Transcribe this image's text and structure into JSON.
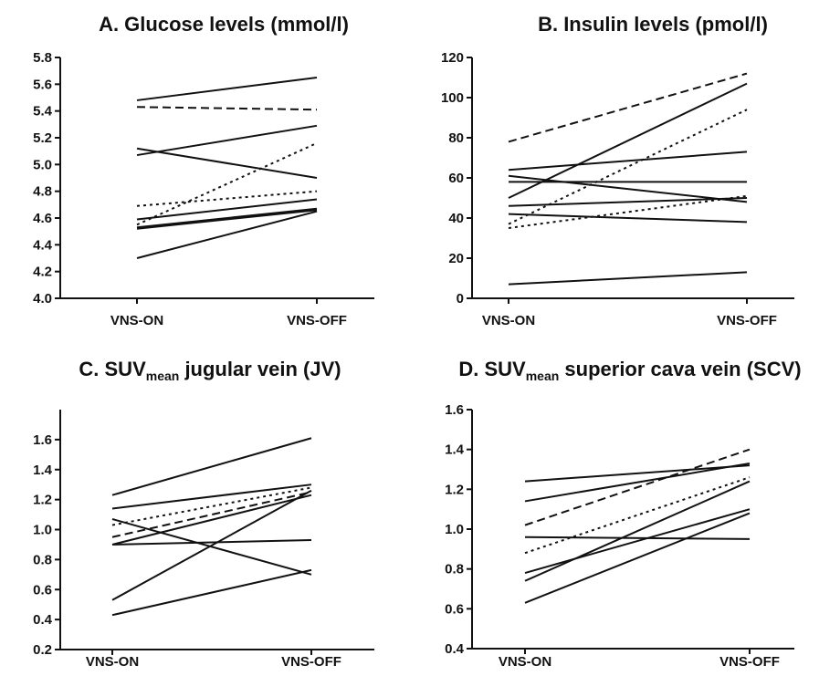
{
  "chart_data": [
    {
      "type": "line",
      "title": "A. Glucose levels (mmol/l)",
      "title_main": "A. Glucose levels (mmol/l)",
      "title_sub": "",
      "title_suffix": "",
      "categories": [
        "VNS-ON",
        "VNS-OFF"
      ],
      "ylim": [
        4.0,
        5.8
      ],
      "yticks": [
        4.0,
        4.2,
        4.4,
        4.6,
        4.8,
        5.0,
        5.2,
        5.4,
        5.6,
        5.8
      ],
      "tick_decimals": 1,
      "series": [
        {
          "values": [
            5.48,
            5.65
          ],
          "style": "solid"
        },
        {
          "values": [
            5.43,
            5.41
          ],
          "style": "dashed"
        },
        {
          "values": [
            5.12,
            4.9
          ],
          "style": "solid"
        },
        {
          "values": [
            5.07,
            5.29
          ],
          "style": "solid"
        },
        {
          "values": [
            4.55,
            5.16
          ],
          "style": "dotted"
        },
        {
          "values": [
            4.69,
            4.8
          ],
          "style": "dotted"
        },
        {
          "values": [
            4.59,
            4.74
          ],
          "style": "solid"
        },
        {
          "values": [
            4.53,
            4.67
          ],
          "style": "solid"
        },
        {
          "values": [
            4.52,
            4.66
          ],
          "style": "solid"
        },
        {
          "values": [
            4.3,
            4.65
          ],
          "style": "solid"
        }
      ]
    },
    {
      "type": "line",
      "title": "B. Insulin levels (pmol/l)",
      "title_main": "B. Insulin levels (pmol/l)",
      "title_sub": "",
      "title_suffix": "",
      "categories": [
        "VNS-ON",
        "VNS-OFF"
      ],
      "ylim": [
        0,
        120
      ],
      "yticks": [
        0,
        20,
        40,
        60,
        80,
        100,
        120
      ],
      "tick_decimals": 0,
      "series": [
        {
          "values": [
            78,
            112
          ],
          "style": "dashed"
        },
        {
          "values": [
            50,
            107
          ],
          "style": "solid"
        },
        {
          "values": [
            37,
            94
          ],
          "style": "dotted"
        },
        {
          "values": [
            35,
            51
          ],
          "style": "dotted"
        },
        {
          "values": [
            64,
            73
          ],
          "style": "solid"
        },
        {
          "values": [
            58,
            58
          ],
          "style": "solid"
        },
        {
          "values": [
            61,
            48
          ],
          "style": "solid"
        },
        {
          "values": [
            46,
            50
          ],
          "style": "solid"
        },
        {
          "values": [
            42,
            38
          ],
          "style": "solid"
        },
        {
          "values": [
            7,
            13
          ],
          "style": "solid"
        }
      ]
    },
    {
      "type": "line",
      "title": "C. SUVmean jugular vein (JV)",
      "title_main": "C. SUV",
      "title_sub": "mean",
      "title_suffix": " jugular vein (JV)",
      "categories": [
        "VNS-ON",
        "VNS-OFF"
      ],
      "ylim": [
        0.2,
        1.8
      ],
      "yticks": [
        0.2,
        0.4,
        0.6,
        0.8,
        1.0,
        1.2,
        1.4,
        1.6
      ],
      "tick_decimals": 1,
      "series": [
        {
          "values": [
            1.23,
            1.61
          ],
          "style": "solid"
        },
        {
          "values": [
            1.14,
            1.3
          ],
          "style": "solid"
        },
        {
          "values": [
            1.03,
            1.28
          ],
          "style": "dotted"
        },
        {
          "values": [
            0.95,
            1.25
          ],
          "style": "dashed"
        },
        {
          "values": [
            0.9,
            1.23
          ],
          "style": "solid"
        },
        {
          "values": [
            1.07,
            0.7
          ],
          "style": "solid"
        },
        {
          "values": [
            0.9,
            0.93
          ],
          "style": "solid"
        },
        {
          "values": [
            0.53,
            1.26
          ],
          "style": "solid"
        },
        {
          "values": [
            0.43,
            0.73
          ],
          "style": "solid"
        }
      ]
    },
    {
      "type": "line",
      "title": "D. SUVmean superior cava vein (SCV)",
      "title_main": "D. SUV",
      "title_sub": "mean",
      "title_suffix": " superior cava vein (SCV)",
      "categories": [
        "VNS-ON",
        "VNS-OFF"
      ],
      "ylim": [
        0.4,
        1.6
      ],
      "yticks": [
        0.4,
        0.6,
        0.8,
        1.0,
        1.2,
        1.4,
        1.6
      ],
      "tick_decimals": 1,
      "series": [
        {
          "values": [
            1.24,
            1.32
          ],
          "style": "solid"
        },
        {
          "values": [
            1.14,
            1.33
          ],
          "style": "solid"
        },
        {
          "values": [
            1.02,
            1.4
          ],
          "style": "dashed"
        },
        {
          "values": [
            0.88,
            1.26
          ],
          "style": "dotted"
        },
        {
          "values": [
            0.96,
            0.95
          ],
          "style": "solid"
        },
        {
          "values": [
            0.78,
            1.1
          ],
          "style": "solid"
        },
        {
          "values": [
            0.74,
            1.24
          ],
          "style": "solid"
        },
        {
          "values": [
            0.63,
            1.08
          ],
          "style": "solid"
        }
      ]
    }
  ]
}
